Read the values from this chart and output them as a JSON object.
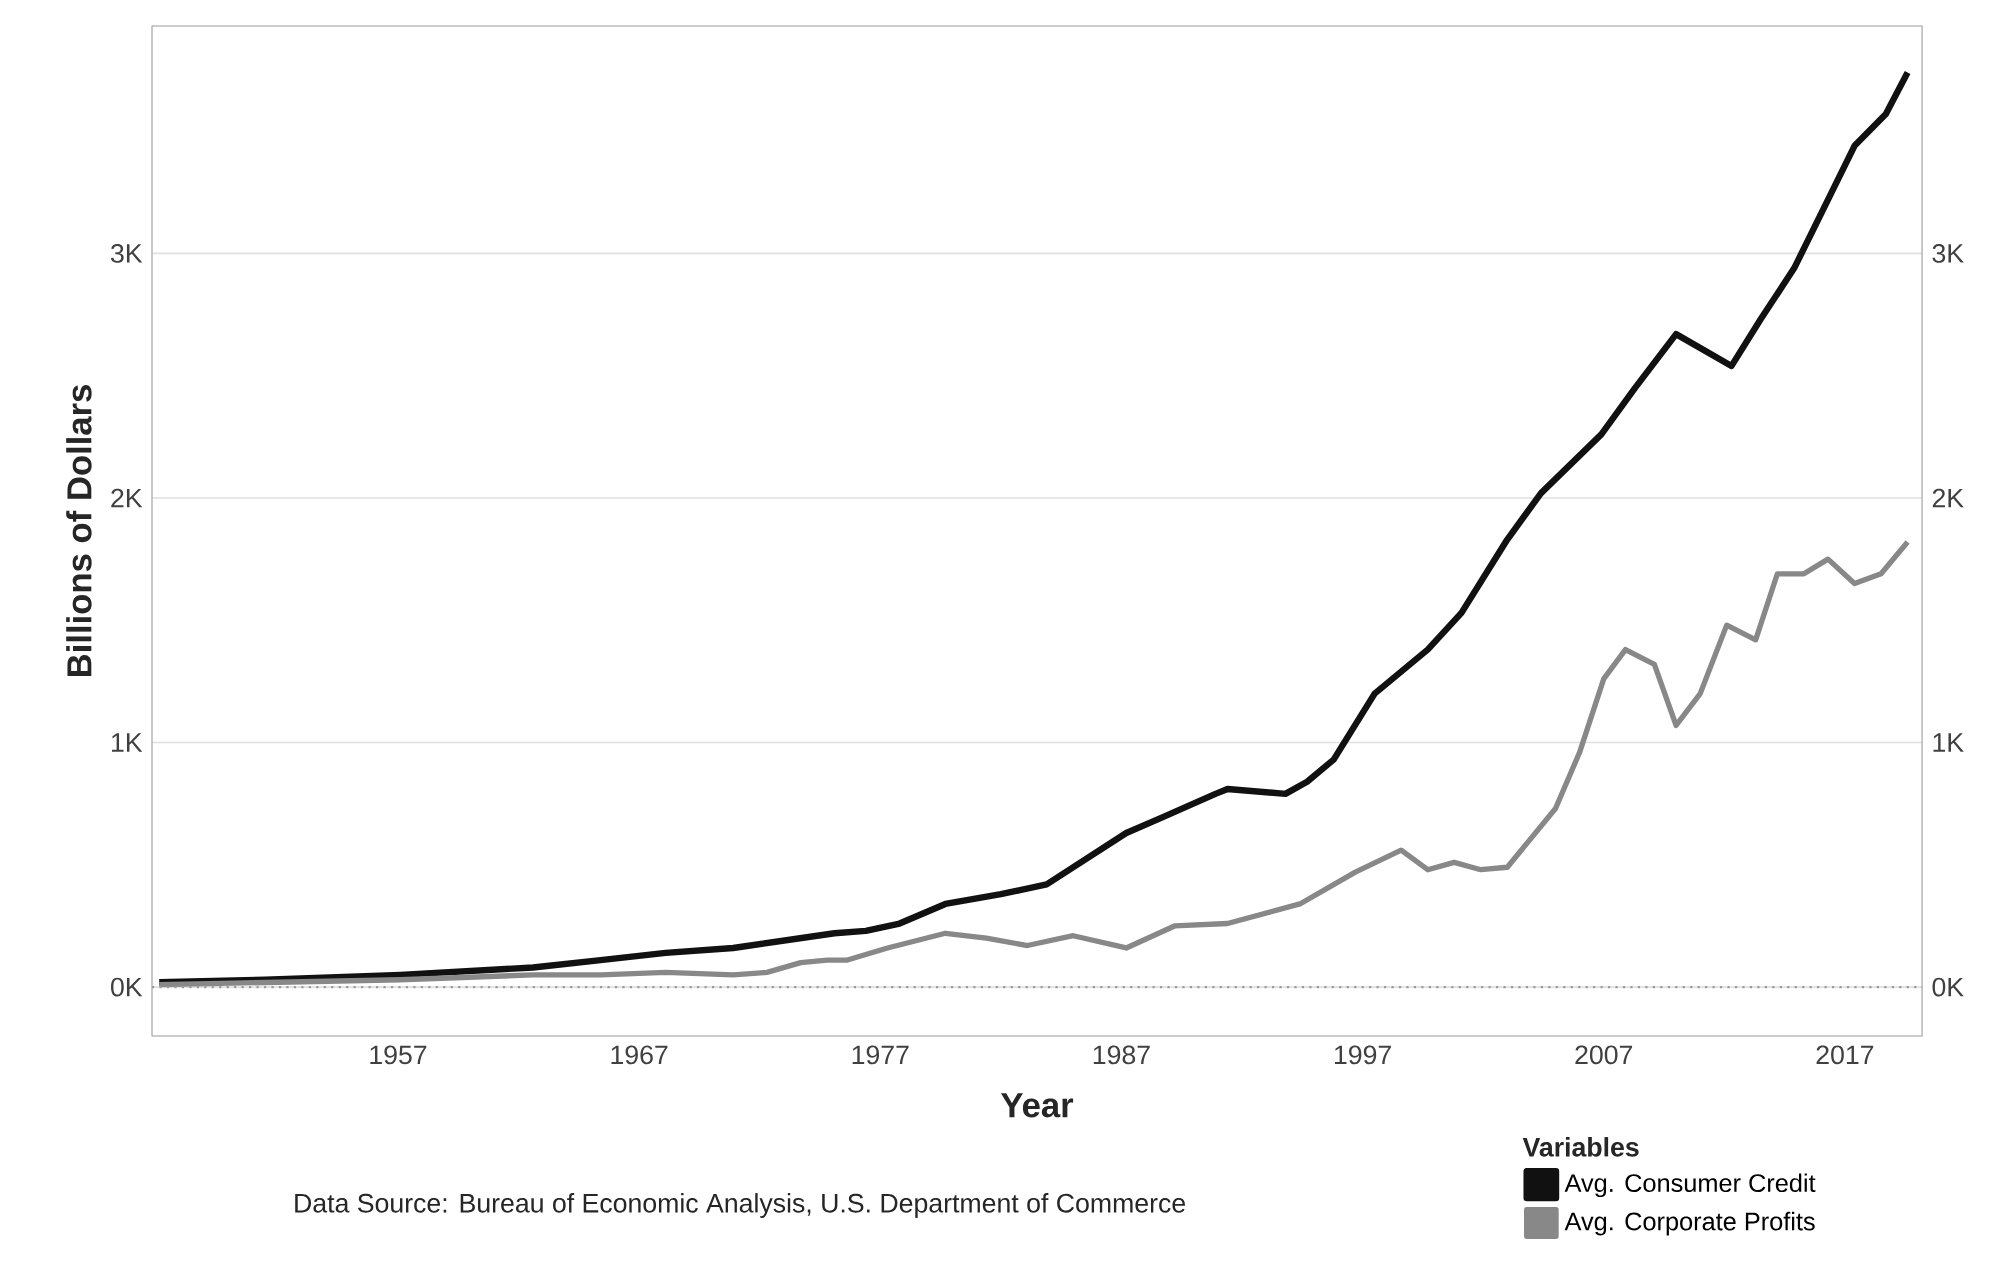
{
  "chart_data": {
    "type": "line",
    "xlabel": "Year",
    "ylabel": "Billions of Dollars",
    "legend_title": "Variables",
    "annotations": [
      "Data Source: Bureau of Economic Analysis, U.S. Department of Commerce"
    ],
    "series": [
      {
        "name": "Avg. Consumer Credit",
        "color": "#111111",
        "x": [
          1947.1,
          1951.5,
          1957.1,
          1962.6,
          1965.4,
          1968.1,
          1970.9,
          1973.7,
          1975.1,
          1976.4,
          1977.8,
          1979.7,
          1982,
          1983.9,
          1987.2,
          1988.6,
          1990.9,
          1991.4,
          1993.8,
          1994.7,
          1995.8,
          1997.5,
          1999.7,
          2001.1,
          2003,
          2004.4,
          2006.9,
          2008.3,
          2010,
          2012.3,
          2013.5,
          2014.9,
          2016,
          2017.4,
          2018.7,
          2019.6
        ],
        "values": [
          20,
          30,
          50,
          80,
          110,
          140,
          160,
          200,
          220,
          230,
          260,
          340,
          380,
          420,
          630,
          690,
          790,
          810,
          790,
          840,
          930,
          1200,
          1380,
          1530,
          1830,
          2020,
          2260,
          2450,
          2670,
          2540,
          2730,
          2940,
          3160,
          3440,
          3570,
          3740
        ]
      },
      {
        "name": "Avg. Corporate Profits",
        "color": "#888888",
        "x": [
          1947.1,
          1957.1,
          1962.6,
          1965.4,
          1968.1,
          1970.9,
          1972.3,
          1973.7,
          1974.8,
          1975.6,
          1977.3,
          1979.7,
          1981.4,
          1983.1,
          1985,
          1987.2,
          1989.2,
          1991.4,
          1994.4,
          1996.7,
          1998.6,
          1999.7,
          2000.8,
          2001.9,
          2003,
          2005,
          2006,
          2007,
          2007.9,
          2009.1,
          2010,
          2011,
          2012.1,
          2013.3,
          2014.2,
          2015.3,
          2016.3,
          2017.4,
          2018.5,
          2019.6
        ],
        "values": [
          10,
          30,
          50,
          50,
          60,
          50,
          60,
          100,
          110,
          110,
          160,
          220,
          200,
          170,
          210,
          160,
          250,
          260,
          340,
          470,
          560,
          480,
          510,
          480,
          490,
          730,
          960,
          1260,
          1380,
          1320,
          1070,
          1200,
          1480,
          1420,
          1690,
          1690,
          1750,
          1650,
          1690,
          1820
        ]
      }
    ],
    "xlim": [
      1946.8,
      2020.2
    ],
    "xticks": [
      1957,
      1967,
      1977,
      1987,
      1997,
      2007,
      2017
    ],
    "ylim": [
      -200,
      3930
    ],
    "yticks": [
      {
        "value": 0,
        "label": "0K"
      },
      {
        "value": 1000,
        "label": "1K"
      },
      {
        "value": 2000,
        "label": "2K"
      },
      {
        "value": 3000,
        "label": "3K"
      }
    ],
    "y2lim": [
      -200,
      3930
    ],
    "y2ticks": [
      {
        "value": 0,
        "label": "0K"
      },
      {
        "value": 1000,
        "label": "1K"
      },
      {
        "value": 2000,
        "label": "2K"
      },
      {
        "value": 3000,
        "label": "3K"
      }
    ],
    "ref_lines": [
      {
        "axis": "y",
        "value": 0,
        "line_style": "dotted",
        "color": "#999999"
      }
    ],
    "grid": "y",
    "legend": "bottom right",
    "line_style": "solid"
  }
}
